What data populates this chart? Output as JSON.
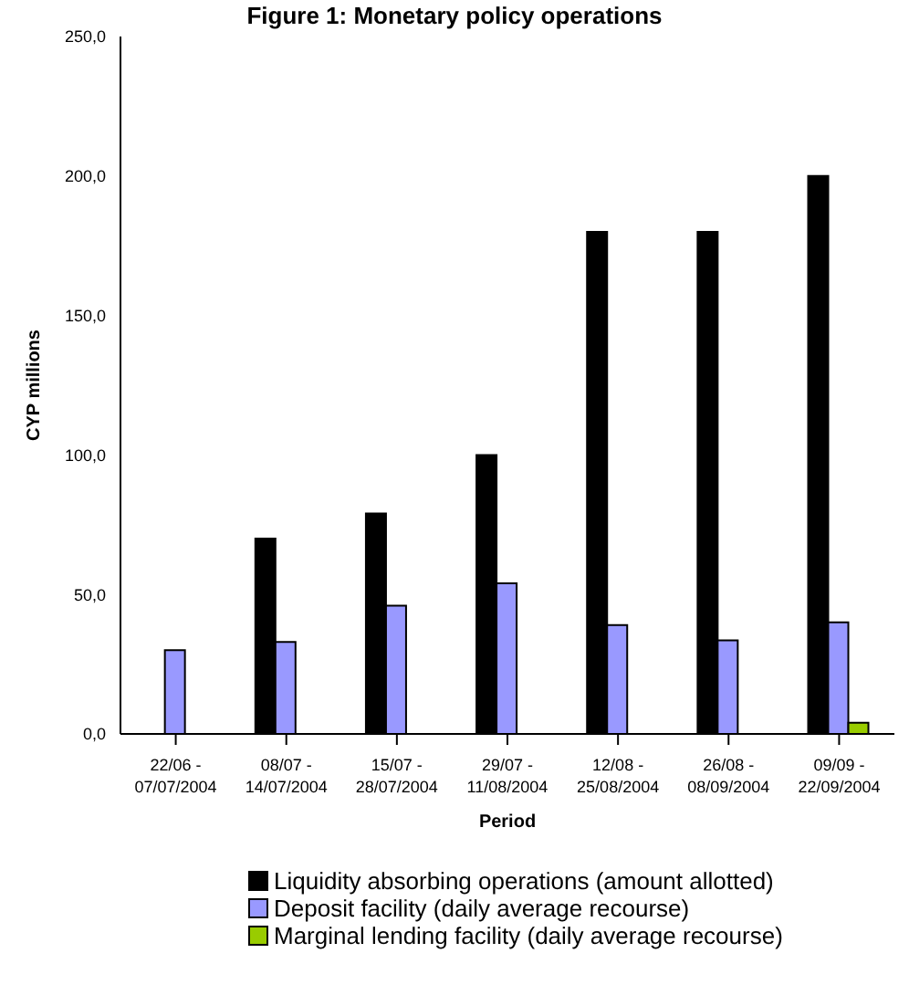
{
  "chart_data": {
    "type": "bar",
    "title": "Figure 1: Monetary policy operations",
    "xlabel": "Period",
    "ylabel": "CYP millions",
    "categories": [
      "22/06 -\n07/07/2004",
      "08/07 -\n14/07/2004",
      "15/07 -\n28/07/2004",
      "29/07 -\n11/08/2004",
      "12/08 -\n25/08/2004",
      "26/08 -\n08/09/2004",
      "09/09 -\n22/09/2004"
    ],
    "series": [
      {
        "name": "Liquidity absorbing operations (amount allotted)",
        "color": "#000000",
        "values": [
          0,
          70,
          79,
          100,
          180,
          180,
          200
        ]
      },
      {
        "name": "Deposit facility (daily average recourse)",
        "color": "#9999ff",
        "values": [
          30,
          33,
          46,
          54,
          39,
          33.5,
          40
        ]
      },
      {
        "name": "Marginal lending facility (daily average recourse)",
        "color": "#99cc00",
        "values": [
          0,
          0,
          0,
          0,
          0,
          0,
          4
        ]
      }
    ],
    "ylim": [
      0,
      250
    ],
    "yticks": [
      {
        "value": 0,
        "label": "0,0"
      },
      {
        "value": 50,
        "label": "50,0"
      },
      {
        "value": 100,
        "label": "100,0"
      },
      {
        "value": 150,
        "label": "150,0"
      },
      {
        "value": 200,
        "label": "200,0"
      },
      {
        "value": 250,
        "label": "250,0"
      }
    ],
    "grid": false,
    "legend": "bottom"
  }
}
